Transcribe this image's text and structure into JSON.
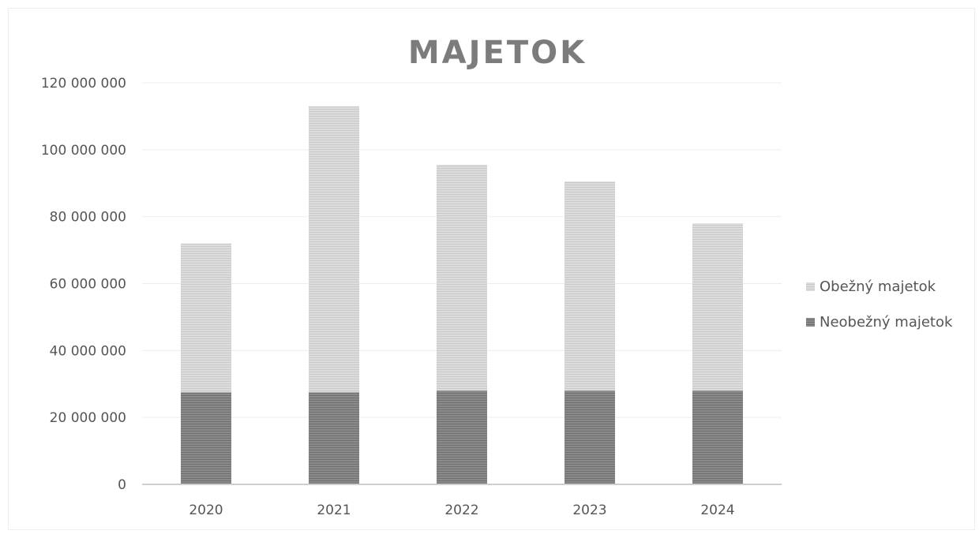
{
  "chart_data": {
    "type": "bar",
    "stacked": true,
    "title": "MAJETOK",
    "xlabel": "",
    "ylabel": "",
    "categories": [
      "2020",
      "2021",
      "2022",
      "2023",
      "2024"
    ],
    "series": [
      {
        "name": "Neobežný majetok",
        "values": [
          27500000,
          27500000,
          28000000,
          28000000,
          28000000
        ],
        "color": "#8a8a8a"
      },
      {
        "name": "Obežný majetok",
        "values": [
          44500000,
          85500000,
          67500000,
          62500000,
          50000000
        ],
        "color": "#dcdcdc"
      }
    ],
    "ylim": [
      0,
      120000000
    ],
    "yticks": [
      0,
      20000000,
      40000000,
      60000000,
      80000000,
      100000000,
      120000000
    ],
    "ytick_labels": [
      "0",
      "20 000 000",
      "40 000 000",
      "60 000 000",
      "80 000 000",
      "100 000 000",
      "120 000 000"
    ],
    "legend": {
      "position": "right",
      "items": [
        "Obežný majetok",
        "Neobežný majetok"
      ]
    },
    "grid": true
  }
}
